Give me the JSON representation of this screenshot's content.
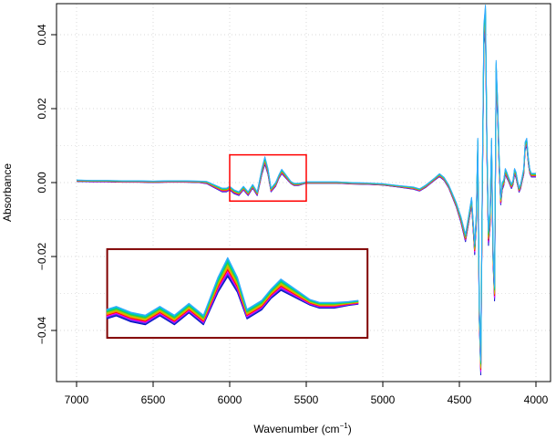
{
  "chart_data": {
    "type": "line",
    "xlabel": "Wavenumber (cm",
    "xlabel_superscript": "−1",
    "xlabel_suffix": ")",
    "ylabel": "Absorbance",
    "xlim": [
      7000,
      4000
    ],
    "ylim": [
      -0.05,
      0.045
    ],
    "x_reversed": true,
    "grid": true,
    "x_ticks": [
      7000,
      6500,
      6000,
      5500,
      5000,
      4500,
      4000
    ],
    "x_tick_labels": [
      "7000",
      "6500",
      "6000",
      "5500",
      "5000",
      "4500",
      "4000"
    ],
    "y_ticks": [
      0.04,
      0.02,
      0.0,
      -0.02,
      -0.04
    ],
    "y_tick_labels": [
      "0.04",
      "0.02",
      "0.00",
      "−0.02",
      "−0.04"
    ],
    "series_colors": [
      "#0000cc",
      "#1f3fbf",
      "#7f1fff",
      "#ff00ff",
      "#ff0000",
      "#ff7f00",
      "#d4b000",
      "#aacc00",
      "#33cc33",
      "#00cc99",
      "#00cccc",
      "#33aaff"
    ],
    "n_spectra": 12,
    "spectrum": {
      "x": [
        7000,
        6900,
        6800,
        6700,
        6600,
        6500,
        6400,
        6300,
        6200,
        6150,
        6100,
        6050,
        6020,
        6000,
        5970,
        5940,
        5910,
        5880,
        5850,
        5820,
        5790,
        5770,
        5750,
        5730,
        5700,
        5680,
        5660,
        5640,
        5620,
        5600,
        5580,
        5550,
        5520,
        5500,
        5400,
        5300,
        5200,
        5100,
        5000,
        4900,
        4800,
        4760,
        4720,
        4690,
        4660,
        4630,
        4600,
        4570,
        4550,
        4520,
        4490,
        4460,
        4440,
        4420,
        4400,
        4390,
        4380,
        4370,
        4360,
        4350,
        4340,
        4330,
        4320,
        4310,
        4300,
        4290,
        4280,
        4270,
        4260,
        4250,
        4240,
        4230,
        4220,
        4210,
        4200,
        4190,
        4180,
        4170,
        4160,
        4150,
        4140,
        4130,
        4120,
        4110,
        4100,
        4090,
        4080,
        4070,
        4060,
        4050,
        4040,
        4030,
        4020,
        4000
      ],
      "y": [
        0.0005,
        0.0004,
        0.0004,
        0.0003,
        0.0003,
        0.0002,
        0.0003,
        0.0003,
        0.0002,
        0.0,
        -0.001,
        -0.002,
        -0.002,
        -0.0015,
        -0.0025,
        -0.003,
        -0.0015,
        -0.003,
        -0.001,
        -0.003,
        0.003,
        0.006,
        0.003,
        -0.002,
        -0.0005,
        0.0015,
        0.003,
        0.002,
        0.001,
        0.0,
        -0.0005,
        -0.0005,
        -0.0002,
        0.0,
        0.0,
        0.0,
        -0.0002,
        -0.0003,
        -0.0005,
        -0.001,
        -0.0015,
        -0.002,
        -0.001,
        0.0,
        0.001,
        0.002,
        0.001,
        -0.001,
        -0.003,
        -0.006,
        -0.01,
        -0.015,
        -0.01,
        -0.005,
        -0.018,
        -0.01,
        0.01,
        -0.035,
        -0.05,
        0.0,
        0.04,
        0.045,
        0.01,
        -0.015,
        -0.01,
        0.01,
        -0.02,
        -0.03,
        0.03,
        0.02,
        0.005,
        -0.005,
        -0.001,
        0.0,
        0.003,
        0.002,
        0.001,
        0.0,
        -0.001,
        0.0,
        0.003,
        0.002,
        0.0,
        -0.002,
        -0.001,
        0.001,
        0.003,
        0.01,
        0.011,
        0.006,
        0.003,
        0.002,
        0.002,
        0.002
      ],
      "deviation": [
        0.0002,
        0.0002,
        0.0002,
        0.0002,
        0.0002,
        0.0002,
        0.0002,
        0.0002,
        0.0002,
        0.0003,
        0.0004,
        0.0005,
        0.0005,
        0.0005,
        0.0005,
        0.0005,
        0.0005,
        0.0005,
        0.0005,
        0.0005,
        0.0008,
        0.001,
        0.0008,
        0.0005,
        0.0005,
        0.0005,
        0.0006,
        0.0005,
        0.0004,
        0.0003,
        0.0003,
        0.0003,
        0.0002,
        0.0002,
        0.0002,
        0.0002,
        0.0002,
        0.0002,
        0.0002,
        0.0002,
        0.0003,
        0.0003,
        0.0003,
        0.0003,
        0.0003,
        0.0004,
        0.0004,
        0.0004,
        0.0005,
        0.0006,
        0.0008,
        0.001,
        0.001,
        0.001,
        0.0015,
        0.0015,
        0.002,
        0.002,
        0.002,
        0.002,
        0.003,
        0.003,
        0.002,
        0.002,
        0.002,
        0.002,
        0.002,
        0.002,
        0.003,
        0.002,
        0.0015,
        0.001,
        0.001,
        0.0008,
        0.0008,
        0.0008,
        0.0006,
        0.0006,
        0.0006,
        0.0006,
        0.0008,
        0.0008,
        0.0006,
        0.0006,
        0.0006,
        0.0006,
        0.0008,
        0.001,
        0.001,
        0.0008,
        0.0006,
        0.0005,
        0.0005,
        0.0005
      ]
    },
    "annotations": [
      {
        "type": "highlight-box",
        "color": "#ff0000",
        "x_range": [
          6000,
          5500
        ],
        "y_range": [
          -0.005,
          0.0075
        ]
      },
      {
        "type": "inset-box",
        "color": "#800000",
        "x_range": [
          6800,
          5100
        ],
        "y_range": [
          -0.042,
          -0.018
        ],
        "shows": "zoom of 6000–5500 region"
      }
    ]
  }
}
